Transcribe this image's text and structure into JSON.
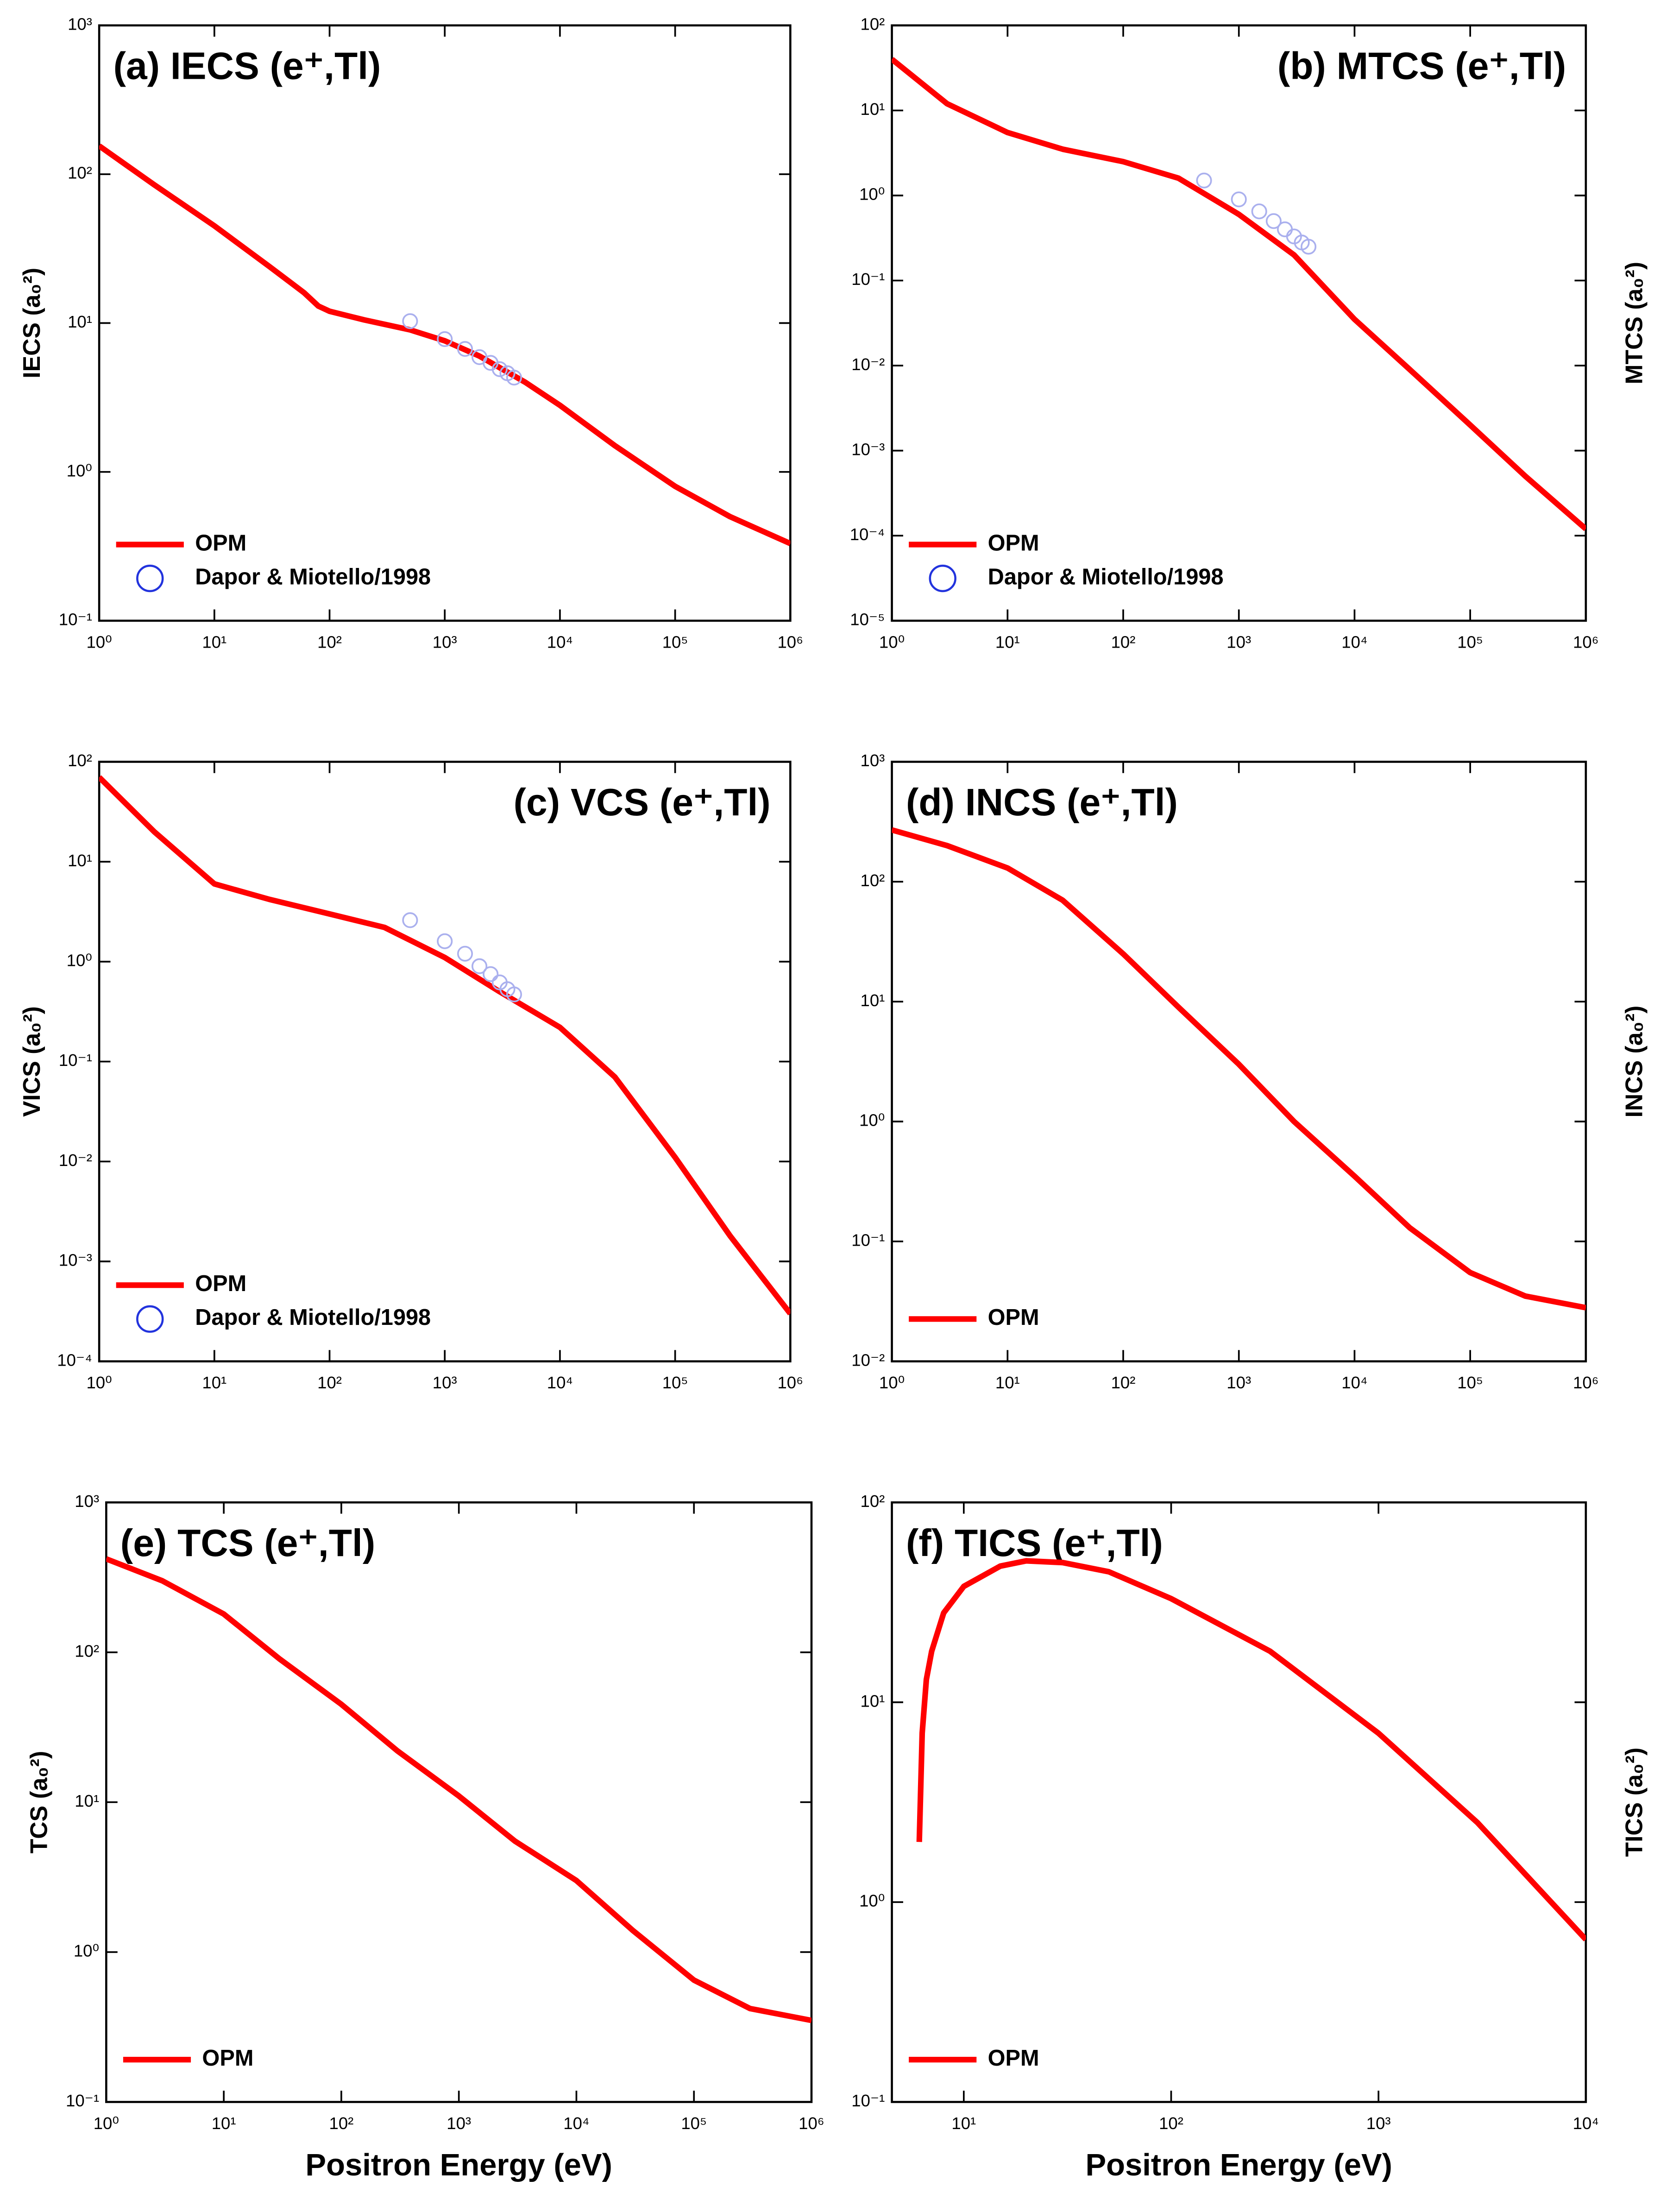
{
  "chart_data": [
    {
      "type": "line",
      "title": "(a) IECS (e⁺,Tl)",
      "title_loc": "upper left",
      "ylabel": "IECS (a₀²)",
      "ylabel_side": "left",
      "log_x": true,
      "log_y": true,
      "xlim": [
        1,
        1000000
      ],
      "ylim": [
        0.1,
        1000
      ],
      "xticks": [
        {
          "value": 1,
          "label": "10⁰"
        },
        {
          "value": 10,
          "label": "10¹"
        },
        {
          "value": 100,
          "label": "10²"
        },
        {
          "value": 1000,
          "label": "10³"
        },
        {
          "value": 10000,
          "label": "10⁴"
        },
        {
          "value": 100000,
          "label": "10⁵"
        },
        {
          "value": 1000000,
          "label": "10⁶"
        }
      ],
      "yticks": [
        {
          "value": 0.1,
          "label": "10⁻¹"
        },
        {
          "value": 1,
          "label": "10⁰"
        },
        {
          "value": 10,
          "label": "10¹"
        },
        {
          "value": 100,
          "label": "10²"
        },
        {
          "value": 1000,
          "label": "10³"
        }
      ],
      "legend": "lower left",
      "series": [
        {
          "name": "OPM",
          "type": "line",
          "color": "#ff0000",
          "x": [
            1,
            3,
            10,
            30,
            60,
            80,
            100,
            200,
            500,
            1000,
            2000,
            5000,
            10000,
            30000,
            100000,
            300000,
            1000000
          ],
          "values": [
            155,
            85,
            45,
            24,
            16,
            13,
            12,
            10.5,
            9,
            7.6,
            6,
            4,
            2.8,
            1.5,
            0.8,
            0.5,
            0.33
          ]
        },
        {
          "name": "Dapor & Miotello/1998",
          "type": "scatter",
          "color": "#aab0ee",
          "legend_color": "#2233dd",
          "x": [
            500,
            1000,
            1500,
            2000,
            2500,
            3000,
            3500,
            4000
          ],
          "values": [
            10.3,
            7.8,
            6.7,
            5.9,
            5.4,
            4.9,
            4.6,
            4.3
          ]
        }
      ]
    },
    {
      "type": "line",
      "title": "(b) MTCS (e⁺,Tl)",
      "title_loc": "upper right",
      "ylabel": "MTCS (a₀²)",
      "ylabel_side": "right",
      "log_x": true,
      "log_y": true,
      "xlim": [
        1,
        1000000
      ],
      "ylim": [
        1e-05,
        100
      ],
      "xticks": [
        {
          "value": 1,
          "label": "10⁰"
        },
        {
          "value": 10,
          "label": "10¹"
        },
        {
          "value": 100,
          "label": "10²"
        },
        {
          "value": 1000,
          "label": "10³"
        },
        {
          "value": 10000,
          "label": "10⁴"
        },
        {
          "value": 100000,
          "label": "10⁵"
        },
        {
          "value": 1000000,
          "label": "10⁶"
        }
      ],
      "yticks": [
        {
          "value": 1e-05,
          "label": "10⁻⁵"
        },
        {
          "value": 0.0001,
          "label": "10⁻⁴"
        },
        {
          "value": 0.001,
          "label": "10⁻³"
        },
        {
          "value": 0.01,
          "label": "10⁻²"
        },
        {
          "value": 0.1,
          "label": "10⁻¹"
        },
        {
          "value": 1,
          "label": "10⁰"
        },
        {
          "value": 10,
          "label": "10¹"
        },
        {
          "value": 100,
          "label": "10²"
        }
      ],
      "legend": "lower left",
      "series": [
        {
          "name": "OPM",
          "type": "line",
          "color": "#ff0000",
          "x": [
            1,
            3,
            10,
            30,
            100,
            300,
            1000,
            3000,
            10000,
            30000,
            100000,
            300000,
            1000000
          ],
          "values": [
            40,
            12,
            5.5,
            3.5,
            2.5,
            1.6,
            0.6,
            0.2,
            0.035,
            0.009,
            0.002,
            0.0005,
            0.00012
          ]
        },
        {
          "name": "Dapor & Miotello/1998",
          "type": "scatter",
          "color": "#aab0ee",
          "legend_color": "#2233dd",
          "x": [
            500,
            1000,
            1500,
            2000,
            2500,
            3000,
            3500,
            4000
          ],
          "values": [
            1.5,
            0.9,
            0.65,
            0.5,
            0.4,
            0.33,
            0.28,
            0.25
          ]
        }
      ]
    },
    {
      "type": "line",
      "title": "(c) VCS (e⁺,Tl)",
      "title_loc": "upper right",
      "ylabel": "VICS (a₀²)",
      "ylabel_side": "left",
      "log_x": true,
      "log_y": true,
      "xlim": [
        1,
        1000000
      ],
      "ylim": [
        0.0001,
        100
      ],
      "xticks": [
        {
          "value": 1,
          "label": "10⁰"
        },
        {
          "value": 10,
          "label": "10¹"
        },
        {
          "value": 100,
          "label": "10²"
        },
        {
          "value": 1000,
          "label": "10³"
        },
        {
          "value": 10000,
          "label": "10⁴"
        },
        {
          "value": 100000,
          "label": "10⁵"
        },
        {
          "value": 1000000,
          "label": "10⁶"
        }
      ],
      "yticks": [
        {
          "value": 0.0001,
          "label": "10⁻⁴"
        },
        {
          "value": 0.001,
          "label": "10⁻³"
        },
        {
          "value": 0.01,
          "label": "10⁻²"
        },
        {
          "value": 0.1,
          "label": "10⁻¹"
        },
        {
          "value": 1,
          "label": "10⁰"
        },
        {
          "value": 10,
          "label": "10¹"
        },
        {
          "value": 100,
          "label": "10²"
        }
      ],
      "legend": "lower left",
      "series": [
        {
          "name": "OPM",
          "type": "line",
          "color": "#ff0000",
          "x": [
            1,
            3,
            10,
            30,
            100,
            300,
            1000,
            3000,
            10000,
            30000,
            100000,
            300000,
            1000000
          ],
          "values": [
            70,
            20,
            6,
            4.2,
            3,
            2.2,
            1.1,
            0.5,
            0.22,
            0.07,
            0.011,
            0.0018,
            0.0003
          ]
        },
        {
          "name": "Dapor & Miotello/1998",
          "type": "scatter",
          "color": "#aab0ee",
          "legend_color": "#2233dd",
          "x": [
            500,
            1000,
            1500,
            2000,
            2500,
            3000,
            3500,
            4000
          ],
          "values": [
            2.6,
            1.6,
            1.2,
            0.9,
            0.75,
            0.62,
            0.53,
            0.47
          ]
        }
      ]
    },
    {
      "type": "line",
      "title": "(d) INCS (e⁺,Tl)",
      "title_loc": "upper left",
      "ylabel": "INCS (a₀²)",
      "ylabel_side": "right",
      "log_x": true,
      "log_y": true,
      "xlim": [
        1,
        1000000
      ],
      "ylim": [
        0.01,
        1000
      ],
      "xticks": [
        {
          "value": 1,
          "label": "10⁰"
        },
        {
          "value": 10,
          "label": "10¹"
        },
        {
          "value": 100,
          "label": "10²"
        },
        {
          "value": 1000,
          "label": "10³"
        },
        {
          "value": 10000,
          "label": "10⁴"
        },
        {
          "value": 100000,
          "label": "10⁵"
        },
        {
          "value": 1000000,
          "label": "10⁶"
        }
      ],
      "yticks": [
        {
          "value": 0.01,
          "label": "10⁻²"
        },
        {
          "value": 0.1,
          "label": "10⁻¹"
        },
        {
          "value": 1,
          "label": "10⁰"
        },
        {
          "value": 10,
          "label": "10¹"
        },
        {
          "value": 100,
          "label": "10²"
        },
        {
          "value": 1000,
          "label": "10³"
        }
      ],
      "legend": "lower left",
      "series": [
        {
          "name": "OPM",
          "type": "line",
          "color": "#ff0000",
          "x": [
            1,
            3,
            10,
            30,
            100,
            300,
            1000,
            3000,
            10000,
            30000,
            100000,
            300000,
            1000000
          ],
          "values": [
            270,
            200,
            130,
            70,
            25,
            9,
            3,
            1,
            0.35,
            0.13,
            0.055,
            0.035,
            0.028
          ]
        }
      ]
    },
    {
      "type": "line",
      "title": "(e) TCS (e⁺,Tl)",
      "title_loc": "upper left",
      "xlabel": "Positron Energy (eV)",
      "ylabel": "TCS (a₀²)",
      "ylabel_side": "left",
      "log_x": true,
      "log_y": true,
      "xlim": [
        1,
        1000000
      ],
      "ylim": [
        0.1,
        1000
      ],
      "xticks": [
        {
          "value": 1,
          "label": "10⁰"
        },
        {
          "value": 10,
          "label": "10¹"
        },
        {
          "value": 100,
          "label": "10²"
        },
        {
          "value": 1000,
          "label": "10³"
        },
        {
          "value": 10000,
          "label": "10⁴"
        },
        {
          "value": 100000,
          "label": "10⁵"
        },
        {
          "value": 1000000,
          "label": "10⁶"
        }
      ],
      "yticks": [
        {
          "value": 0.1,
          "label": "10⁻¹"
        },
        {
          "value": 1,
          "label": "10⁰"
        },
        {
          "value": 10,
          "label": "10¹"
        },
        {
          "value": 100,
          "label": "10²"
        },
        {
          "value": 1000,
          "label": "10³"
        }
      ],
      "legend": "lower left",
      "series": [
        {
          "name": "OPM",
          "type": "line",
          "color": "#ff0000",
          "x": [
            1,
            3,
            10,
            30,
            100,
            300,
            1000,
            3000,
            10000,
            30000,
            100000,
            300000,
            1000000
          ],
          "values": [
            420,
            300,
            180,
            90,
            45,
            22,
            11,
            5.5,
            3,
            1.4,
            0.65,
            0.42,
            0.35
          ]
        }
      ]
    },
    {
      "type": "line",
      "title": "(f) TICS (e⁺,Tl)",
      "title_loc": "upper left",
      "xlabel": "Positron Energy (eV)",
      "ylabel": "TICS (a₀²)",
      "ylabel_side": "right",
      "log_x": true,
      "log_y": true,
      "xlim": [
        4.5,
        10000
      ],
      "ylim": [
        0.1,
        100
      ],
      "xticks": [
        {
          "value": 10,
          "label": "10¹"
        },
        {
          "value": 100,
          "label": "10²"
        },
        {
          "value": 1000,
          "label": "10³"
        },
        {
          "value": 10000,
          "label": "10⁴"
        }
      ],
      "yticks": [
        {
          "value": 0.1,
          "label": "10⁻¹"
        },
        {
          "value": 1,
          "label": "10⁰"
        },
        {
          "value": 10,
          "label": "10¹"
        },
        {
          "value": 100,
          "label": "10²"
        }
      ],
      "legend": "lower left",
      "series": [
        {
          "name": "OPM",
          "type": "line",
          "color": "#ff0000",
          "x": [
            6.1,
            6.3,
            6.6,
            7,
            8,
            10,
            15,
            20,
            30,
            50,
            100,
            300,
            1000,
            3000,
            10000
          ],
          "values": [
            2,
            7,
            13,
            18,
            28,
            38,
            48,
            51,
            50,
            45,
            33,
            18,
            7,
            2.5,
            0.65
          ]
        }
      ]
    }
  ]
}
